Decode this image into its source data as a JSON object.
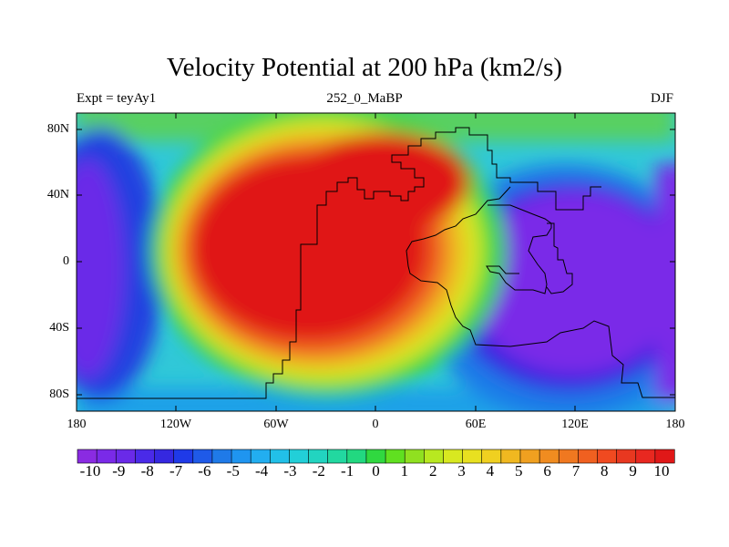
{
  "title": "Velocity Potential at 200 hPa (km2/s)",
  "subtitle_left": "Expt = teyAy1",
  "subtitle_center": "252_0_MaBP",
  "subtitle_right": "DJF",
  "lat_ticks": [
    "80N",
    "40N",
    "0",
    "40S",
    "80S"
  ],
  "lon_ticks": [
    "180",
    "120W",
    "60W",
    "0",
    "60E",
    "120E",
    "180"
  ],
  "colorbar": {
    "labels": [
      "-10",
      "-9",
      "-8",
      "-7",
      "-6",
      "-5",
      "-4",
      "-3",
      "-2",
      "-1",
      "0",
      "1",
      "2",
      "3",
      "4",
      "5",
      "6",
      "7",
      "8",
      "9",
      "10"
    ],
    "colors": [
      "#8a2be2",
      "#7a2ae8",
      "#6a2ae8",
      "#4a2ae8",
      "#3528e0",
      "#1f3ae8",
      "#1f5ae8",
      "#1f7ae8",
      "#1f95f0",
      "#22aef0",
      "#22c0e8",
      "#22cfd8",
      "#22d4c0",
      "#22d8a0",
      "#22d880",
      "#30d840",
      "#60e020",
      "#90e020",
      "#b8e820",
      "#d8e820",
      "#e8e020",
      "#f0d020",
      "#f0b820",
      "#f0a020",
      "#f08c20",
      "#f07820",
      "#f06020",
      "#f04a20",
      "#e83820",
      "#e82820",
      "#e01818"
    ]
  },
  "chart_data": {
    "type": "heatmap",
    "title": "Velocity Potential at 200 hPa (km2/s)",
    "variable": "velocity potential",
    "level": "200 hPa",
    "units": "km2/s",
    "season": "DJF",
    "experiment": "teyAy1",
    "period": "252_0_MaBP",
    "lon_range": [
      -180,
      180
    ],
    "lat_range": [
      -90,
      90
    ],
    "value_range": [
      -10,
      10
    ],
    "max_center": {
      "lon": -45,
      "lat": 10,
      "value": 10
    },
    "min_center": {
      "lon": 115,
      "lat": -20,
      "value": -10
    },
    "secondary_min_center": {
      "lon": -170,
      "lat": 0,
      "value": -9
    }
  }
}
